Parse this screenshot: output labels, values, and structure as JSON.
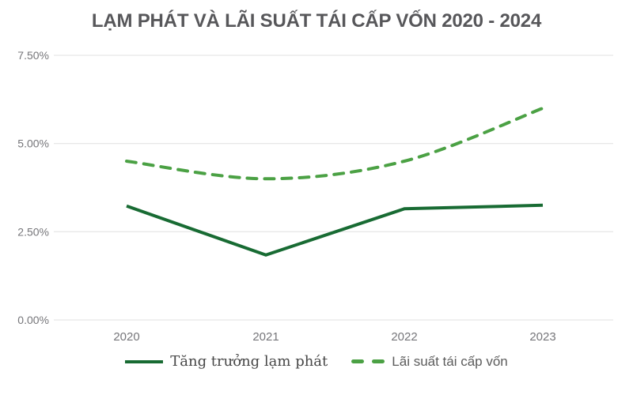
{
  "colors": {
    "background": "#ffffff",
    "title": "#57575a",
    "axis_label": "#76767a",
    "gridline": "#e0e0e0",
    "inflation_line": "#186b33",
    "refinancing_line": "#4ba144"
  },
  "chart_data": {
    "type": "line",
    "title": "LẠM PHÁT VÀ LÃI SUẤT TÁI CẤP VỐN 2020 - 2024",
    "categories": [
      "2020",
      "2021",
      "2022",
      "2023"
    ],
    "series": [
      {
        "name": "Tăng trưởng lạm phát",
        "values": [
          3.23,
          1.84,
          3.15,
          3.25
        ],
        "color": "#186b33",
        "style": "solid",
        "smooth": false
      },
      {
        "name": "Lãi suất tái cấp vốn",
        "values": [
          4.5,
          4.0,
          4.5,
          6.0
        ],
        "color": "#4ba144",
        "style": "dashed",
        "smooth": true
      }
    ],
    "yticks": {
      "labels": [
        "0.00%",
        "2.50%",
        "5.00%",
        "7.50%"
      ],
      "values": [
        0,
        2.5,
        5,
        7.5
      ]
    },
    "ylim": [
      0,
      7.5
    ],
    "xlabel": "",
    "ylabel": "",
    "grid": "horizontal",
    "legend_position": "bottom"
  }
}
